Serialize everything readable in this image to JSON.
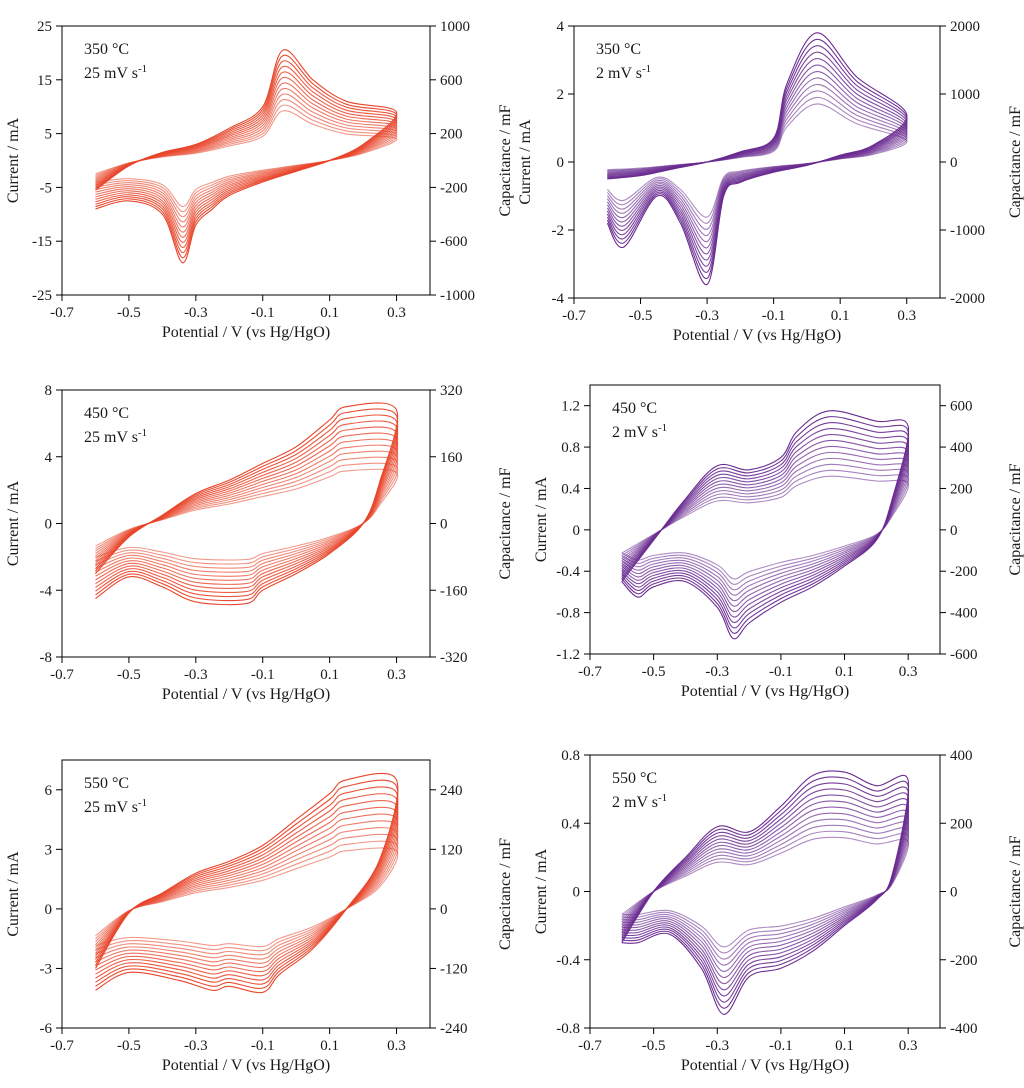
{
  "chart_data": [
    {
      "type": "line",
      "annotation": [
        "350 °C",
        "25 mV s",
        "-1"
      ],
      "color": "#e8452a",
      "xlabel": "Potential / V (vs Hg/HgO)",
      "ylabel": "Current / mA",
      "y2label": "Capacitance / mF",
      "xlim": [
        -0.7,
        0.4
      ],
      "ylim": [
        -25,
        25
      ],
      "y2lim": [
        -1000,
        1000
      ],
      "xticks": [
        "-0.7",
        "-0.5",
        "-0.3",
        "-0.1",
        "0.1",
        "0.3"
      ],
      "yticks": [
        "-25",
        "-15",
        "-5",
        "5",
        "15",
        "25"
      ],
      "y2ticks": [
        "-1000",
        "-600",
        "-200",
        "200",
        "600",
        "1000"
      ],
      "cycles": 12,
      "anodic": [
        [
          -0.6,
          -5.5
        ],
        [
          -0.5,
          -1
        ],
        [
          -0.4,
          1.5
        ],
        [
          -0.3,
          3
        ],
        [
          -0.2,
          6
        ],
        [
          -0.1,
          10
        ],
        [
          -0.04,
          20.5
        ],
        [
          0.05,
          15
        ],
        [
          0.15,
          11
        ],
        [
          0.3,
          9
        ]
      ],
      "cathodic": [
        [
          0.3,
          9
        ],
        [
          0.2,
          3
        ],
        [
          0.1,
          0
        ],
        [
          0.0,
          -2
        ],
        [
          -0.1,
          -4
        ],
        [
          -0.2,
          -6.5
        ],
        [
          -0.25,
          -9
        ],
        [
          -0.3,
          -12
        ],
        [
          -0.34,
          -19
        ],
        [
          -0.4,
          -10
        ],
        [
          -0.5,
          -7.5
        ],
        [
          -0.6,
          -9
        ]
      ]
    },
    {
      "type": "line",
      "annotation": [
        "350 °C",
        "2 mV s",
        "-1"
      ],
      "color": "#6a2c91",
      "xlabel": "Potential / V (vs Hg/HgO)",
      "ylabel": "Current / mA",
      "y2label": "Capacitance / mF",
      "xlim": [
        -0.7,
        0.4
      ],
      "ylim": [
        -4,
        4
      ],
      "y2lim": [
        -2000,
        2000
      ],
      "xticks": [
        "-0.7",
        "-0.5",
        "-0.3",
        "-0.1",
        "0.1",
        "0.3"
      ],
      "yticks": [
        "-4",
        "-2",
        "0",
        "2",
        "4"
      ],
      "y2ticks": [
        "-2000",
        "-1000",
        "0",
        "1000",
        "2000"
      ],
      "cycles": 12,
      "anodic": [
        [
          -0.6,
          -0.5
        ],
        [
          -0.5,
          -0.4
        ],
        [
          -0.4,
          -0.2
        ],
        [
          -0.3,
          0
        ],
        [
          -0.2,
          0.3
        ],
        [
          -0.1,
          0.7
        ],
        [
          -0.06,
          2.3
        ],
        [
          0.03,
          3.8
        ],
        [
          0.15,
          2.5
        ],
        [
          0.3,
          1.4
        ]
      ],
      "cathodic": [
        [
          0.3,
          1.4
        ],
        [
          0.2,
          0.5
        ],
        [
          0.1,
          0.2
        ],
        [
          0.0,
          -0.1
        ],
        [
          -0.1,
          -0.3
        ],
        [
          -0.2,
          -0.6
        ],
        [
          -0.25,
          -1
        ],
        [
          -0.3,
          -3.6
        ],
        [
          -0.38,
          -1.8
        ],
        [
          -0.45,
          -1
        ],
        [
          -0.55,
          -2.5
        ],
        [
          -0.6,
          -1.8
        ]
      ]
    },
    {
      "type": "line",
      "annotation": [
        "450 °C",
        "25 mV s",
        "-1"
      ],
      "color": "#e8452a",
      "xlabel": "Potential / V (vs Hg/HgO)",
      "ylabel": "Current / mA",
      "y2label": "Capacitance / mF",
      "xlim": [
        -0.7,
        0.4
      ],
      "ylim": [
        -8,
        8
      ],
      "y2lim": [
        -320,
        320
      ],
      "xticks": [
        "-0.7",
        "-0.5",
        "-0.3",
        "-0.1",
        "0.1",
        "0.3"
      ],
      "yticks": [
        "-8",
        "-4",
        "0",
        "4",
        "8"
      ],
      "y2ticks": [
        "-320",
        "-160",
        "0",
        "160",
        "320"
      ],
      "cycles": 12,
      "anodic": [
        [
          -0.6,
          -3
        ],
        [
          -0.5,
          -0.8
        ],
        [
          -0.4,
          0.5
        ],
        [
          -0.3,
          1.8
        ],
        [
          -0.2,
          2.6
        ],
        [
          -0.1,
          3.6
        ],
        [
          0.0,
          4.6
        ],
        [
          0.1,
          6.2
        ],
        [
          0.15,
          7
        ],
        [
          0.3,
          6.8
        ]
      ],
      "cathodic": [
        [
          0.3,
          6.8
        ],
        [
          0.25,
          2.5
        ],
        [
          0.2,
          0
        ],
        [
          0.1,
          -1.8
        ],
        [
          0.0,
          -3
        ],
        [
          -0.1,
          -4
        ],
        [
          -0.15,
          -4.8
        ],
        [
          -0.3,
          -4.7
        ],
        [
          -0.4,
          -3.8
        ],
        [
          -0.5,
          -3.2
        ],
        [
          -0.6,
          -4.5
        ]
      ]
    },
    {
      "type": "line",
      "annotation": [
        "450 °C",
        "2 mV s",
        "-1"
      ],
      "color": "#6a2c91",
      "xlabel": "Potential / V (vs Hg/HgO)",
      "ylabel": "Current / mA",
      "y2label": "Capacitance / mF",
      "xlim": [
        -0.7,
        0.4
      ],
      "ylim": [
        -1.2,
        1.4
      ],
      "y2lim": [
        -600,
        700
      ],
      "xticks": [
        "-0.7",
        "-0.5",
        "-0.3",
        "-0.1",
        "0.1",
        "0.3"
      ],
      "yticks": [
        "-1.2",
        "-0.8",
        "-0.4",
        "0",
        "0.4",
        "0.8",
        "1.2"
      ],
      "y2ticks": [
        "-600",
        "-400",
        "-200",
        "0",
        "200",
        "400",
        "600"
      ],
      "cycles": 12,
      "anodic": [
        [
          -0.6,
          -0.5
        ],
        [
          -0.5,
          -0.1
        ],
        [
          -0.4,
          0.3
        ],
        [
          -0.3,
          0.62
        ],
        [
          -0.2,
          0.58
        ],
        [
          -0.1,
          0.7
        ],
        [
          -0.05,
          0.95
        ],
        [
          0.05,
          1.15
        ],
        [
          0.2,
          1.05
        ],
        [
          0.3,
          1.0
        ]
      ],
      "cathodic": [
        [
          0.3,
          1.0
        ],
        [
          0.25,
          0.3
        ],
        [
          0.2,
          -0.1
        ],
        [
          0.1,
          -0.35
        ],
        [
          0.0,
          -0.55
        ],
        [
          -0.1,
          -0.7
        ],
        [
          -0.2,
          -0.9
        ],
        [
          -0.25,
          -1.05
        ],
        [
          -0.3,
          -0.75
        ],
        [
          -0.4,
          -0.5
        ],
        [
          -0.5,
          -0.55
        ],
        [
          -0.55,
          -0.65
        ],
        [
          -0.6,
          -0.5
        ]
      ]
    },
    {
      "type": "line",
      "annotation": [
        "550 °C",
        "25 mV s",
        "-1"
      ],
      "color": "#e8452a",
      "xlabel": "Potential / V (vs Hg/HgO)",
      "ylabel": "Current / mA",
      "y2label": "Capacitance / mF",
      "xlim": [
        -0.7,
        0.4
      ],
      "ylim": [
        -6,
        7.5
      ],
      "y2lim": [
        -240,
        300
      ],
      "xticks": [
        "-0.7",
        "-0.5",
        "-0.3",
        "-0.1",
        "0.1",
        "0.3"
      ],
      "yticks": [
        "-6",
        "-3",
        "0",
        "3",
        "6"
      ],
      "y2ticks": [
        "-240",
        "-120",
        "0",
        "120",
        "240"
      ],
      "cycles": 12,
      "anodic": [
        [
          -0.6,
          -3
        ],
        [
          -0.5,
          -0.2
        ],
        [
          -0.4,
          0.8
        ],
        [
          -0.3,
          1.8
        ],
        [
          -0.2,
          2.4
        ],
        [
          -0.1,
          3.2
        ],
        [
          0.0,
          4.5
        ],
        [
          0.1,
          5.8
        ],
        [
          0.15,
          6.5
        ],
        [
          0.3,
          6.5
        ]
      ],
      "cathodic": [
        [
          0.3,
          6.5
        ],
        [
          0.25,
          2.5
        ],
        [
          0.15,
          0
        ],
        [
          0.05,
          -2
        ],
        [
          -0.05,
          -3.3
        ],
        [
          -0.1,
          -4.2
        ],
        [
          -0.2,
          -3.9
        ],
        [
          -0.25,
          -4.1
        ],
        [
          -0.35,
          -3.6
        ],
        [
          -0.5,
          -3.2
        ],
        [
          -0.6,
          -4.1
        ]
      ]
    },
    {
      "type": "line",
      "annotation": [
        "550 °C",
        "2 mV s",
        "-1"
      ],
      "color": "#6a2c91",
      "xlabel": "Potential / V (vs Hg/HgO)",
      "ylabel": "Current / mA",
      "y2label": "Capacitance / mF",
      "xlim": [
        -0.7,
        0.4
      ],
      "ylim": [
        -0.8,
        0.8
      ],
      "y2lim": [
        -400,
        400
      ],
      "xticks": [
        "-0.7",
        "-0.5",
        "-0.3",
        "-0.1",
        "0.1",
        "0.3"
      ],
      "yticks": [
        "-0.8",
        "-0.4",
        "0",
        "0.4",
        "0.8"
      ],
      "y2ticks": [
        "-400",
        "-200",
        "0",
        "200",
        "400"
      ],
      "cycles": 12,
      "anodic": [
        [
          -0.6,
          -0.3
        ],
        [
          -0.5,
          0
        ],
        [
          -0.4,
          0.2
        ],
        [
          -0.3,
          0.38
        ],
        [
          -0.2,
          0.35
        ],
        [
          -0.1,
          0.5
        ],
        [
          0.0,
          0.68
        ],
        [
          0.1,
          0.7
        ],
        [
          0.2,
          0.62
        ],
        [
          0.3,
          0.65
        ]
      ],
      "cathodic": [
        [
          0.3,
          0.65
        ],
        [
          0.25,
          0.1
        ],
        [
          0.2,
          -0.05
        ],
        [
          0.1,
          -0.2
        ],
        [
          0.0,
          -0.35
        ],
        [
          -0.1,
          -0.45
        ],
        [
          -0.2,
          -0.5
        ],
        [
          -0.28,
          -0.72
        ],
        [
          -0.35,
          -0.45
        ],
        [
          -0.45,
          -0.25
        ],
        [
          -0.55,
          -0.3
        ],
        [
          -0.6,
          -0.3
        ]
      ]
    }
  ]
}
